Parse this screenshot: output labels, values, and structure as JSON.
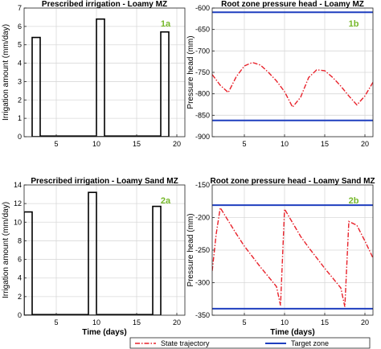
{
  "chart_data": [
    {
      "id": "1a",
      "type": "bar",
      "title": "Prescribed irrigation - Loamy MZ",
      "panel_label": "1a",
      "xlabel": "",
      "ylabel": "Irrigation amount (mm/day)",
      "xlim": [
        1,
        21
      ],
      "ylim": [
        0,
        7
      ],
      "xticks": [
        5,
        10,
        15,
        20
      ],
      "yticks": [
        0,
        1,
        2,
        3,
        4,
        5,
        6,
        7
      ],
      "baseline_segments": [
        [
          3,
          10
        ],
        [
          11,
          18
        ]
      ],
      "bars": [
        {
          "x0": 2,
          "x1": 3,
          "value": 5.4
        },
        {
          "x0": 10,
          "x1": 11,
          "value": 6.4
        },
        {
          "x0": 18,
          "x1": 19,
          "value": 5.7
        }
      ],
      "grid": true
    },
    {
      "id": "1b",
      "type": "line",
      "title": "Root zone pressure head - Loamy MZ",
      "panel_label": "1b",
      "xlabel": "",
      "ylabel": "Pressure head (mm)",
      "xlim": [
        1,
        21
      ],
      "ylim": [
        -900,
        -600
      ],
      "xticks": [
        5,
        10,
        15,
        20
      ],
      "yticks": [
        -900,
        -850,
        -800,
        -750,
        -700,
        -650,
        -600
      ],
      "grid": true,
      "series": [
        {
          "name": "State trajectory",
          "color": "#e8212a",
          "style": "dashdot",
          "x": [
            1,
            2,
            3,
            4,
            5,
            6,
            7,
            8,
            9,
            10,
            11,
            12,
            13,
            14,
            15,
            16,
            17,
            18,
            19,
            20,
            21
          ],
          "y": [
            -755,
            -780,
            -797,
            -760,
            -735,
            -727,
            -733,
            -750,
            -770,
            -795,
            -831,
            -808,
            -762,
            -744,
            -746,
            -762,
            -782,
            -805,
            -826,
            -805,
            -773
          ]
        },
        {
          "name": "Target zone",
          "color": "#1f3fbf",
          "style": "solid",
          "x": [
            1,
            21
          ],
          "y": [
            -610,
            -610
          ]
        },
        {
          "name": "Target zone",
          "color": "#1f3fbf",
          "style": "solid",
          "x": [
            1,
            21
          ],
          "y": [
            -862,
            -862
          ]
        }
      ]
    },
    {
      "id": "2a",
      "type": "bar",
      "title": "Prescribed irrigation - Loamy Sand MZ",
      "panel_label": "2a",
      "xlabel": "Time (days)",
      "ylabel": "Irrigation amount (mm/day)",
      "xlim": [
        1,
        21
      ],
      "ylim": [
        0,
        14
      ],
      "xticks": [
        5,
        10,
        15,
        20
      ],
      "yticks": [
        0,
        2,
        4,
        6,
        8,
        10,
        12,
        14
      ],
      "baseline_segments": [
        [
          2,
          9
        ],
        [
          10,
          17
        ]
      ],
      "bars": [
        {
          "x0": 1,
          "x1": 2,
          "value": 11.1
        },
        {
          "x0": 9,
          "x1": 10,
          "value": 13.2
        },
        {
          "x0": 17,
          "x1": 18,
          "value": 11.7
        }
      ],
      "grid": true
    },
    {
      "id": "2b",
      "type": "line",
      "title": "Root zone pressure head - Loamy Sand MZ",
      "panel_label": "2b",
      "xlabel": "Time (days)",
      "ylabel": "Pressure head (mm)",
      "xlim": [
        1,
        21
      ],
      "ylim": [
        -350,
        -150
      ],
      "xticks": [
        5,
        10,
        15,
        20
      ],
      "yticks": [
        -350,
        -300,
        -250,
        -200,
        -150
      ],
      "grid": true,
      "series": [
        {
          "name": "State trajectory",
          "color": "#e8212a",
          "style": "dashdot",
          "x": [
            1,
            1.5,
            2,
            3,
            4,
            5,
            6,
            7,
            8,
            9,
            9.5,
            10,
            11,
            12,
            13,
            14,
            15,
            16,
            17,
            17.5,
            18,
            19,
            20,
            21
          ],
          "y": [
            -282,
            -225,
            -185,
            -205,
            -225,
            -244,
            -260,
            -276,
            -291,
            -306,
            -335,
            -187,
            -208,
            -229,
            -246,
            -262,
            -278,
            -293,
            -308,
            -337,
            -206,
            -212,
            -236,
            -262
          ]
        },
        {
          "name": "Target zone",
          "color": "#1f3fbf",
          "style": "solid",
          "x": [
            1,
            21
          ],
          "y": [
            -181,
            -181
          ]
        },
        {
          "name": "Target zone",
          "color": "#1f3fbf",
          "style": "solid",
          "x": [
            1,
            21
          ],
          "y": [
            -340,
            -340
          ]
        }
      ]
    }
  ],
  "legend": {
    "placement": "bottom-right",
    "entries": [
      {
        "label": "State trajectory",
        "color": "#e8212a",
        "style": "dashdot"
      },
      {
        "label": "Target zone",
        "color": "#1f3fbf",
        "style": "solid"
      }
    ]
  },
  "colors": {
    "label_green": "#76b82a",
    "bar_edge": "#000000",
    "grid": "#d9d9d9"
  }
}
